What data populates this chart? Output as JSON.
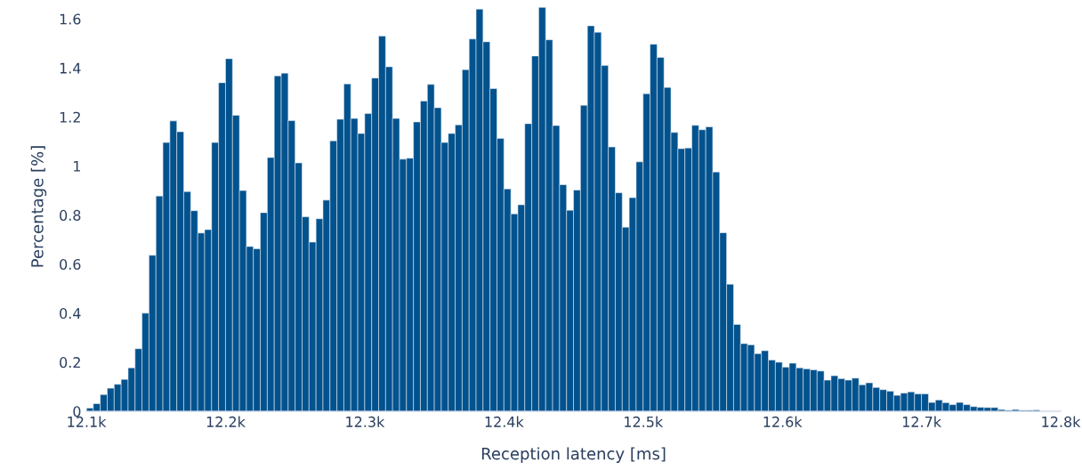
{
  "chart_data": {
    "type": "histogram",
    "xlabel": "Reception latency [ms]",
    "ylabel": "Percentage [%]",
    "color": "#02528e",
    "bins": [
      12100,
      12105,
      12110,
      12115,
      12120,
      12125,
      12130,
      12135,
      12140,
      12145,
      12150,
      12155,
      12160,
      12165,
      12170,
      12175,
      12180,
      12185,
      12190,
      12195,
      12200,
      12205,
      12210,
      12215,
      12220,
      12225,
      12230,
      12235,
      12240,
      12245,
      12250,
      12255,
      12260,
      12265,
      12270,
      12275,
      12280,
      12285,
      12290,
      12295,
      12300,
      12305,
      12310,
      12315,
      12320,
      12325,
      12330,
      12335,
      12340,
      12345,
      12350,
      12355,
      12360,
      12365,
      12370,
      12375,
      12380,
      12385,
      12390,
      12395,
      12400,
      12405,
      12410,
      12415,
      12420,
      12425,
      12430,
      12435,
      12440,
      12445,
      12450,
      12455,
      12460,
      12465,
      12470,
      12475,
      12480,
      12485,
      12490,
      12495,
      12500,
      12505,
      12510,
      12515,
      12520,
      12525,
      12530,
      12535,
      12540,
      12545,
      12550,
      12555,
      12560,
      12565,
      12570,
      12575,
      12580,
      12585,
      12590,
      12595,
      12600,
      12605,
      12610,
      12615,
      12620,
      12625,
      12630,
      12635,
      12640,
      12645,
      12650,
      12655,
      12660,
      12665,
      12670,
      12675,
      12680,
      12685,
      12690,
      12695,
      12700,
      12705,
      12710,
      12715,
      12720,
      12725,
      12730,
      12735,
      12740,
      12745,
      12750,
      12755,
      12760,
      12765,
      12770,
      12775,
      12780,
      12785
    ],
    "values": [
      0.013,
      0.031,
      0.068,
      0.094,
      0.11,
      0.13,
      0.177,
      0.255,
      0.4,
      0.636,
      0.878,
      1.096,
      1.184,
      1.14,
      0.896,
      0.818,
      0.727,
      0.741,
      1.096,
      1.34,
      1.438,
      1.207,
      0.9,
      0.672,
      0.663,
      0.81,
      1.035,
      1.368,
      1.379,
      1.185,
      1.013,
      0.793,
      0.69,
      0.785,
      0.861,
      1.103,
      1.191,
      1.335,
      1.194,
      1.133,
      1.214,
      1.359,
      1.53,
      1.405,
      1.194,
      1.028,
      1.032,
      1.18,
      1.265,
      1.333,
      1.238,
      1.096,
      1.133,
      1.168,
      1.393,
      1.518,
      1.64,
      1.507,
      1.316,
      1.113,
      0.907,
      0.805,
      0.842,
      1.173,
      1.449,
      1.647,
      1.515,
      1.165,
      0.924,
      0.82,
      0.902,
      1.248,
      1.572,
      1.546,
      1.41,
      1.078,
      0.891,
      0.751,
      0.871,
      1.017,
      1.295,
      1.497,
      1.443,
      1.321,
      1.137,
      1.071,
      1.074,
      1.166,
      1.148,
      1.16,
      0.976,
      0.728,
      0.518,
      0.354,
      0.276,
      0.271,
      0.235,
      0.247,
      0.209,
      0.2,
      0.18,
      0.196,
      0.177,
      0.173,
      0.169,
      0.164,
      0.127,
      0.145,
      0.133,
      0.127,
      0.135,
      0.108,
      0.116,
      0.097,
      0.088,
      0.082,
      0.065,
      0.074,
      0.079,
      0.071,
      0.071,
      0.036,
      0.046,
      0.035,
      0.027,
      0.036,
      0.027,
      0.019,
      0.016,
      0.015,
      0.015,
      0.007,
      0.004,
      0.007,
      0.004,
      0.004,
      0.005
    ],
    "xlim": [
      12100,
      12800
    ],
    "xticks": [
      {
        "value": 12100,
        "label": "12.1k"
      },
      {
        "value": 12200,
        "label": "12.2k"
      },
      {
        "value": 12300,
        "label": "12.3k"
      },
      {
        "value": 12400,
        "label": "12.4k"
      },
      {
        "value": 12500,
        "label": "12.5k"
      },
      {
        "value": 12600,
        "label": "12.6k"
      },
      {
        "value": 12700,
        "label": "12.7k"
      },
      {
        "value": 12800,
        "label": "12.8k"
      }
    ],
    "ylim": [
      0,
      1.67
    ],
    "yticks": [
      0,
      0.2,
      0.4,
      0.6,
      0.8,
      1,
      1.2,
      1.4,
      1.6
    ],
    "grid": false,
    "legend": false
  }
}
